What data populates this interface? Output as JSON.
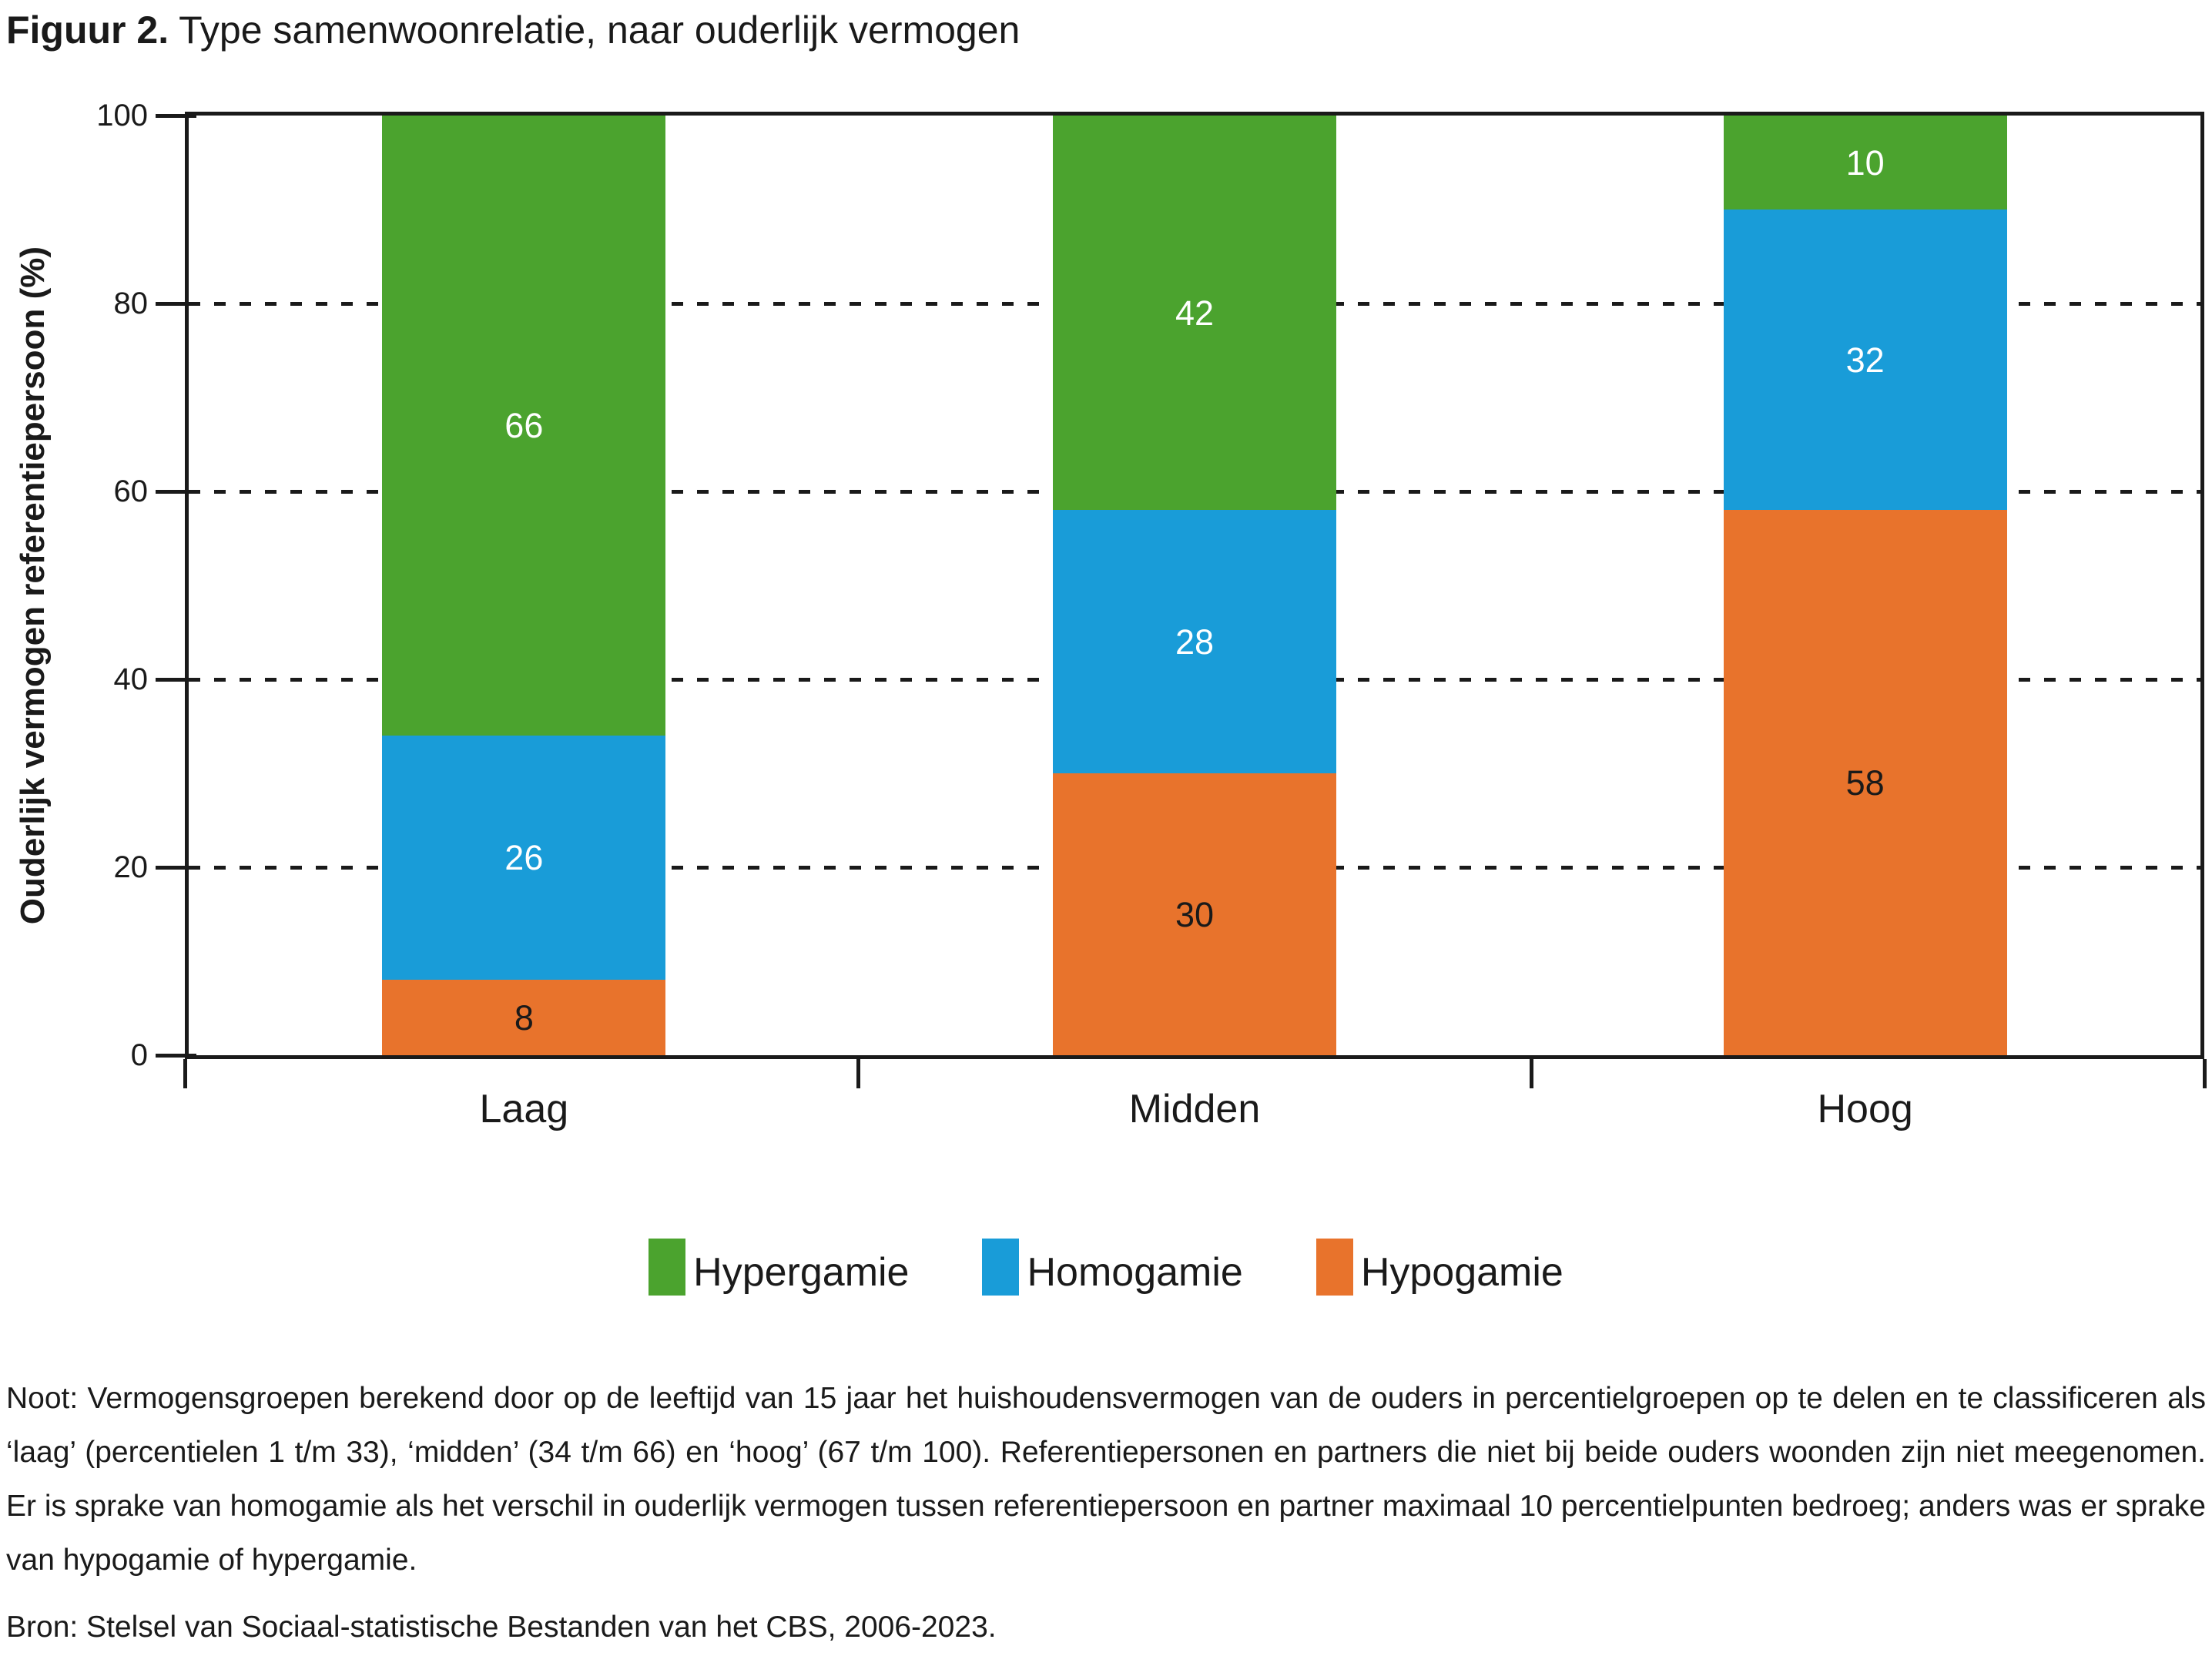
{
  "title": {
    "prefix": "Figuur 2.",
    "rest": " Type samenwoonrelatie, naar ouderlijk vermogen"
  },
  "chart_data": {
    "type": "bar",
    "stacked": true,
    "categories": [
      "Laag",
      "Midden",
      "Hoog"
    ],
    "series": [
      {
        "name": "Hypergamie",
        "color": "#4BA32E",
        "value_label_color": "#ffffff",
        "values": [
          66,
          42,
          10
        ]
      },
      {
        "name": "Homogamie",
        "color": "#199CD8",
        "value_label_color": "#ffffff",
        "values": [
          26,
          28,
          32
        ]
      },
      {
        "name": "Hypogamie",
        "color": "#E8732C",
        "value_label_color": "#1a1a1a",
        "values": [
          8,
          30,
          58
        ]
      }
    ],
    "ylabel": "Ouderlijk vermogen referentiepersoon (%)",
    "xlabel": "",
    "ylim": [
      0,
      100
    ],
    "yticks": [
      0,
      20,
      40,
      60,
      80,
      100
    ],
    "gridline_values": [
      20,
      40,
      60,
      80
    ],
    "grid_style": "dashed-horizontal",
    "axis_color": "#1a1a1a",
    "legend_position": "bottom"
  },
  "note": "Noot: Vermogensgroepen berekend door op de leeftijd van 15 jaar het huishoudensvermogen van de ouders in percentielgroepen op te delen en te classificeren als ‘laag’ (percentielen 1 t/m 33), ‘midden’ (34 t/m 66) en ‘hoog’ (67 t/m 100). Referentiepersonen en partners die niet bij beide ouders woonden zijn niet meegenomen. Er is sprake van homogamie als het verschil in ouderlijk vermogen tussen referentiepersoon en partner maximaal 10 percentielpunten bedroeg; anders was er sprake van hypogamie of hypergamie.",
  "source": "Bron: Stelsel van Sociaal-statistische Bestanden van het CBS, 2006-2023."
}
